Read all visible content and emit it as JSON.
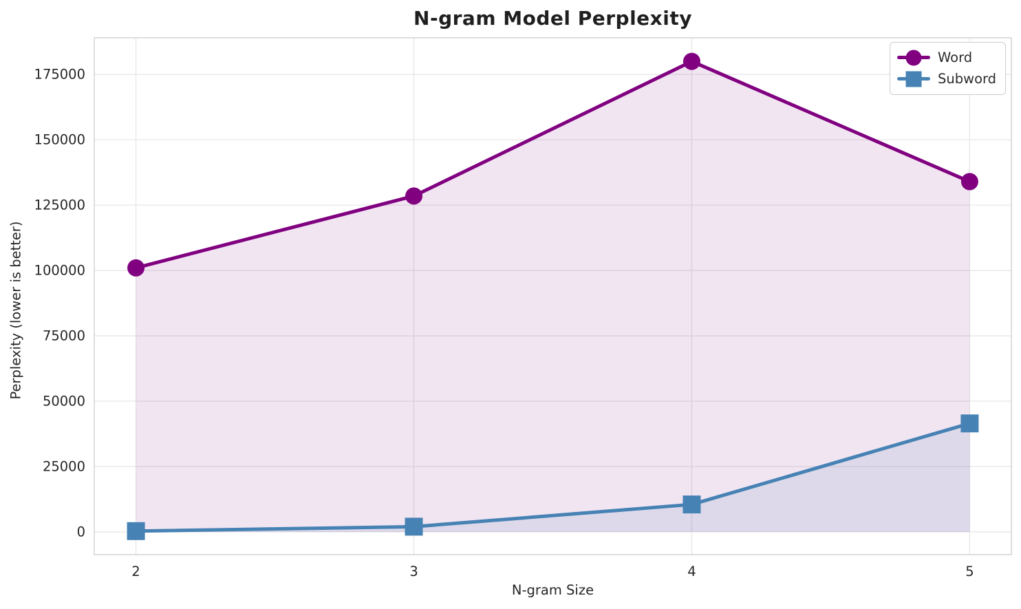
{
  "title": "N-gram Model Perplexity",
  "chart_data": {
    "type": "line",
    "title": "N-gram Model Perplexity",
    "xlabel": "N-gram Size",
    "ylabel": "Perplexity (lower is better)",
    "x": [
      2,
      3,
      4,
      5
    ],
    "series": [
      {
        "name": "Word",
        "values": [
          101000,
          128500,
          180000,
          134000
        ],
        "color": "#800080",
        "marker": "circle",
        "line_width": 5,
        "area_fill": "rgba(128,0,128,0.10)"
      },
      {
        "name": "Subword",
        "values": [
          300,
          2000,
          10500,
          41500
        ],
        "color": "#4682B4",
        "marker": "square",
        "line_width": 5,
        "area_fill": "rgba(70,130,180,0.12)"
      }
    ],
    "xticks": [
      2,
      3,
      4,
      5
    ],
    "ytick_labels": [
      "0",
      "25000",
      "50000",
      "75000",
      "100000",
      "125000",
      "150000",
      "175000"
    ],
    "yticks": [
      0,
      25000,
      50000,
      75000,
      100000,
      125000,
      150000,
      175000
    ],
    "xlim": [
      1.85,
      5.15
    ],
    "ylim": [
      -8700,
      189000
    ],
    "grid": true,
    "grid_color": "#e7e7e7",
    "spine_color": "#cfcfcf",
    "tick_label_color": "#262626",
    "area_baseline": 0,
    "legend_position": "upper right"
  }
}
